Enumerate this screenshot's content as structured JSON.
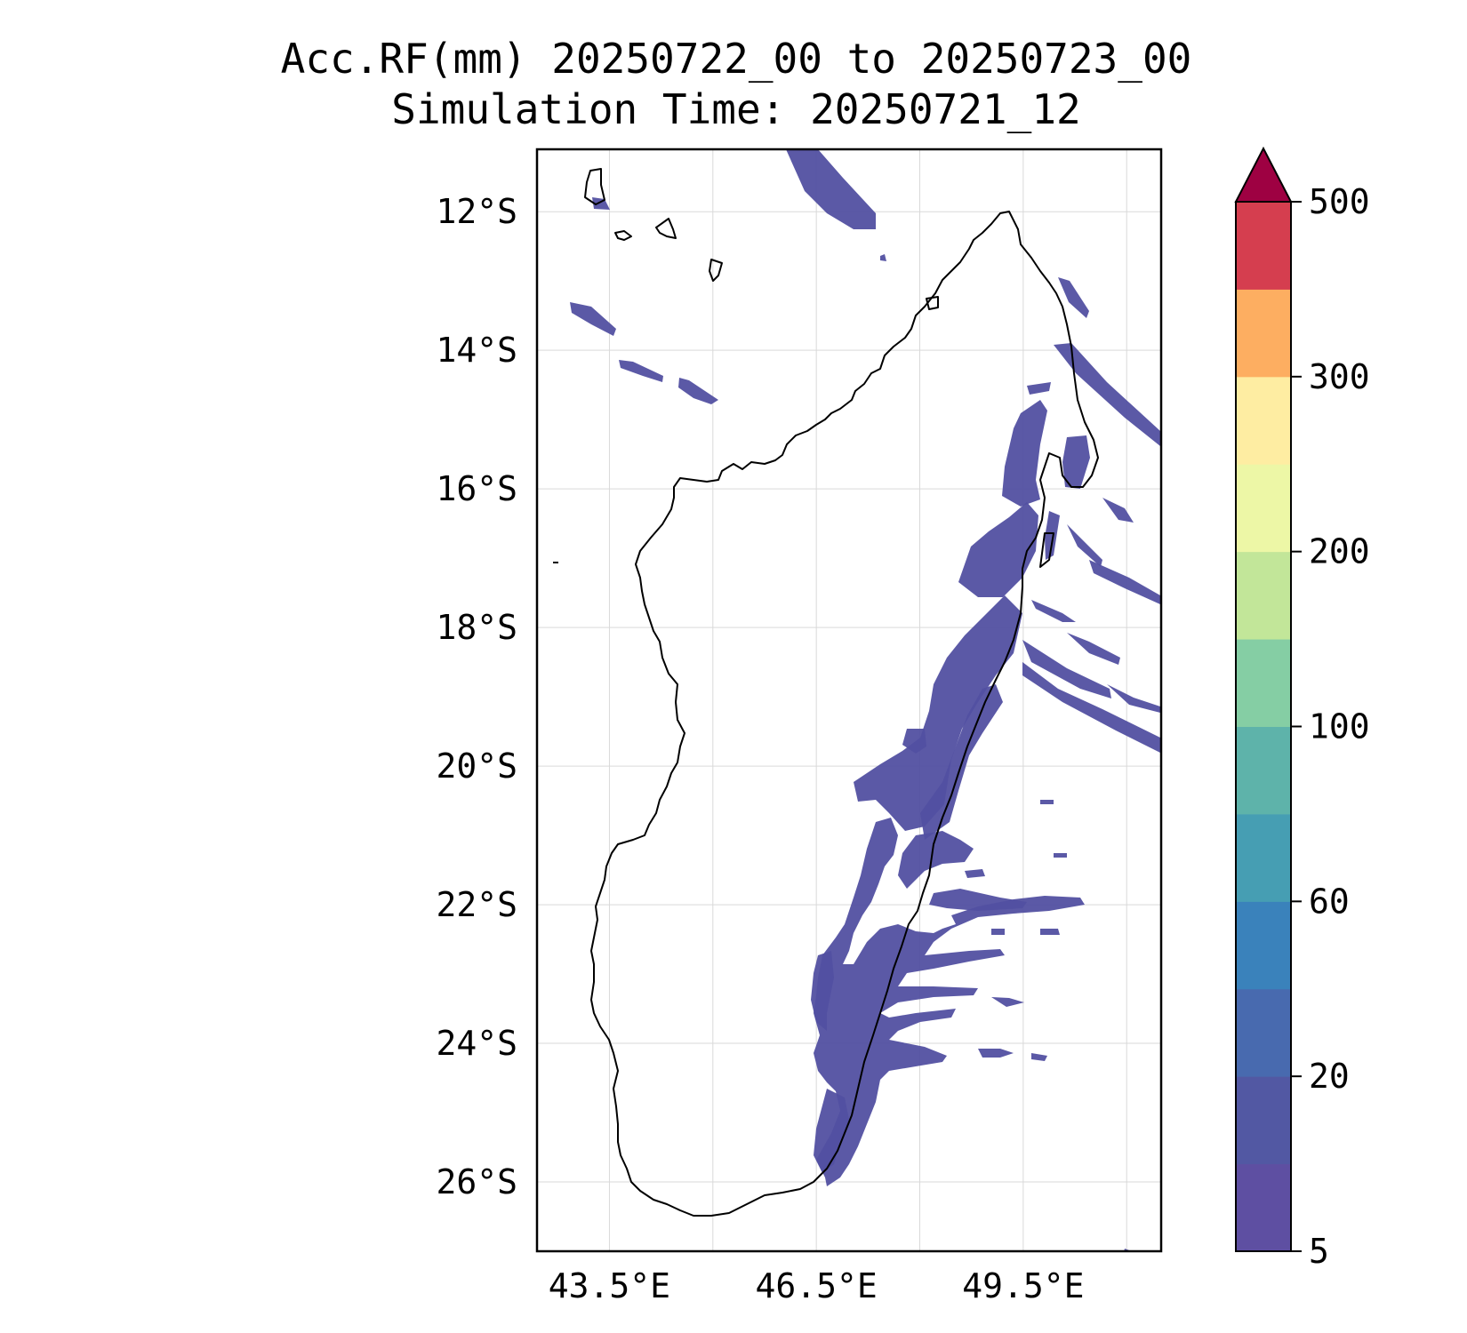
{
  "title": {
    "line1": "Acc.RF(mm) 20250722_00 to 20250723_00",
    "line2": "Simulation Time: 20250721_12"
  },
  "map": {
    "region": "Madagascar",
    "lon_range": [
      42.45,
      51.5
    ],
    "lat_range": [
      -27.0,
      -11.1
    ],
    "lat_ticks": [
      -12,
      -14,
      -16,
      -18,
      -20,
      -22,
      -24,
      -26
    ],
    "lat_labels": [
      "12°S",
      "14°S",
      "16°S",
      "18°S",
      "20°S",
      "22°S",
      "24°S",
      "26°S"
    ],
    "lon_ticks": [
      43.5,
      46.5,
      49.5
    ],
    "lon_labels": [
      "43.5°E",
      "46.5°E",
      "49.5°E"
    ],
    "grid_lons": [
      43.5,
      45.0,
      46.5,
      48.0,
      49.5,
      51.0
    ],
    "gridlines": true,
    "rain_color": "#5250a1",
    "coastline_color": "#000000"
  },
  "colorbar": {
    "levels": [
      5,
      10,
      20,
      40,
      60,
      80,
      100,
      150,
      200,
      250,
      300,
      350,
      500
    ],
    "colors": [
      "#5e4fa2",
      "#5258a3",
      "#486aaf",
      "#3a82bb",
      "#469eb3",
      "#5eb3aa",
      "#85cea4",
      "#c2e699",
      "#edf7a6",
      "#feedA2",
      "#fdae61",
      "#d53e4f"
    ],
    "extend_color": "#9e0142",
    "tick_values": [
      5,
      20,
      60,
      100,
      200,
      300,
      500
    ],
    "tick_labels": [
      "5",
      "20",
      "60",
      "100",
      "200",
      "300",
      "500"
    ],
    "extend": "max"
  }
}
